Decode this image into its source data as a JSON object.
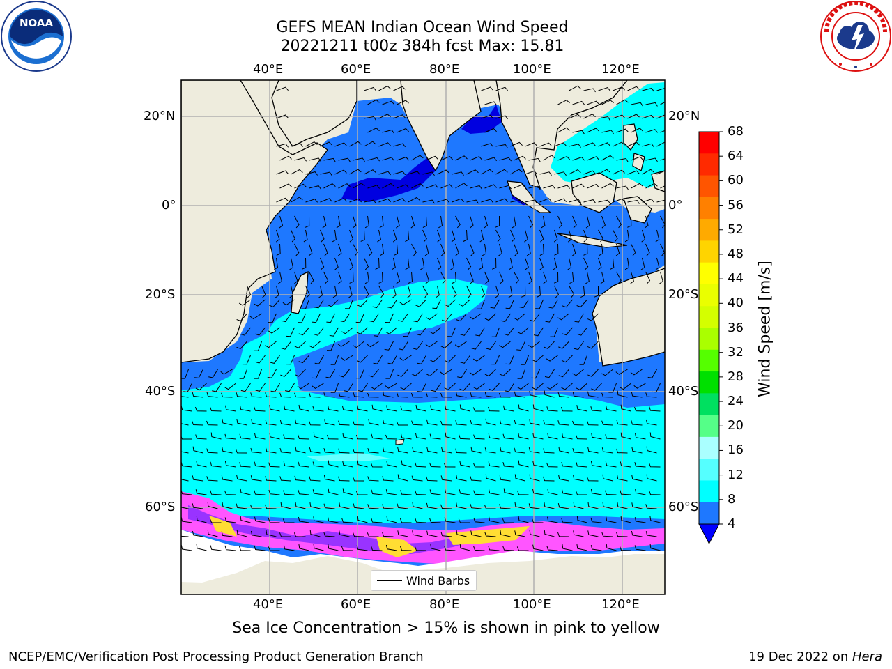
{
  "title": {
    "line1": "GEFS MEAN Indian Ocean Wind Speed",
    "line2": "20221211 t00z 384h fcst   Max: 15.81"
  },
  "logos": {
    "noaa": {
      "name": "noaa-logo",
      "text": "NOAA",
      "ring_text": "NATIONAL OCEANIC AND ATMOSPHERIC ADMINISTRATION · U.S. DEPARTMENT OF COMMERCE"
    },
    "nws": {
      "name": "nws-logo",
      "ring_text": "NATIONAL WEATHER SERVICE"
    }
  },
  "map": {
    "lon_labels": [
      "40°E",
      "60°E",
      "80°E",
      "100°E",
      "120°E"
    ],
    "lat_labels": [
      "20°N",
      "0°",
      "20°S",
      "40°S",
      "60°S"
    ],
    "lon_range": [
      20,
      130
    ],
    "lat_range": [
      -73,
      28
    ],
    "legend_label": "Wind Barbs",
    "colors": {
      "land": "#eeecdd",
      "ice_free_land": "#ffffff",
      "grid": "#b0b0b0",
      "ws_4_8": "#1e78ff",
      "ws_0_4": "#0000e0",
      "ws_8_12": "#00ffff",
      "ws_12_16": "#66ffff",
      "ice_pink": "#ff55ff",
      "ice_purple": "#9933ff",
      "ice_yellow": "#ffdd33"
    }
  },
  "colorbar": {
    "title": "Wind Speed [m/s]",
    "ticks": [
      "68",
      "64",
      "60",
      "56",
      "52",
      "48",
      "44",
      "40",
      "36",
      "32",
      "28",
      "24",
      "20",
      "16",
      "12",
      "8",
      "4"
    ],
    "colors": [
      "#ff0000",
      "#ff2a00",
      "#ff5500",
      "#ff8000",
      "#ffaa00",
      "#ffd400",
      "#ffff00",
      "#eaff00",
      "#d4ff00",
      "#aaff00",
      "#55ff00",
      "#00e000",
      "#00e060",
      "#55ff88",
      "#aaffff",
      "#55ffff",
      "#00ffff",
      "#1e78ff"
    ],
    "under_color": "#0000ff"
  },
  "caption": "Sea Ice Concentration > 15% is shown in pink to yellow",
  "footer": {
    "left": "NCEP/EMC/Verification Post Processing Product Generation Branch",
    "right_prefix": "19 Dec 2022 on ",
    "right_machine": "Hera"
  }
}
